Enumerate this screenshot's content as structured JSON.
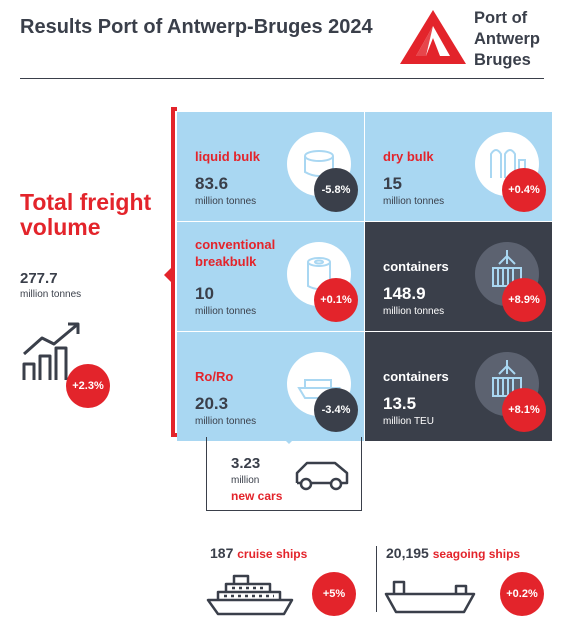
{
  "header": {
    "title": "Results Port of Antwerp-Bruges 2024",
    "logo_text": "Port of Antwerp Bruges"
  },
  "total": {
    "heading": "Total freight volume",
    "value": "277.7",
    "unit": "million tonnes",
    "change": "+2.3%"
  },
  "tiles": [
    {
      "label": "liquid bulk",
      "value": "83.6",
      "unit": "million tonnes",
      "change": "-5.8%"
    },
    {
      "label": "dry bulk",
      "value": "15",
      "unit": "million tonnes",
      "change": "+0.4%"
    },
    {
      "label": "conventional breakbulk",
      "value": "10",
      "unit": "million tonnes",
      "change": "+0.1%"
    },
    {
      "label": "containers",
      "value": "148.9",
      "unit": "million tonnes",
      "change": "+8.9%"
    },
    {
      "label": "Ro/Ro",
      "value": "20.3",
      "unit": "million tonnes",
      "change": "-3.4%"
    },
    {
      "label": "containers",
      "value": "13.5",
      "unit": "million TEU",
      "change": "+8.1%"
    }
  ],
  "cars": {
    "value": "3.23",
    "unit": "million",
    "label": "new cars"
  },
  "cruise": {
    "value": "187",
    "label": "cruise ships",
    "change": "+5%"
  },
  "seagoing": {
    "value": "20,195",
    "label": "seagoing ships",
    "change": "+0.2%"
  },
  "colors": {
    "red": "#e3242b",
    "dark": "#3a3f4a",
    "light_blue": "#a9d7f2"
  }
}
